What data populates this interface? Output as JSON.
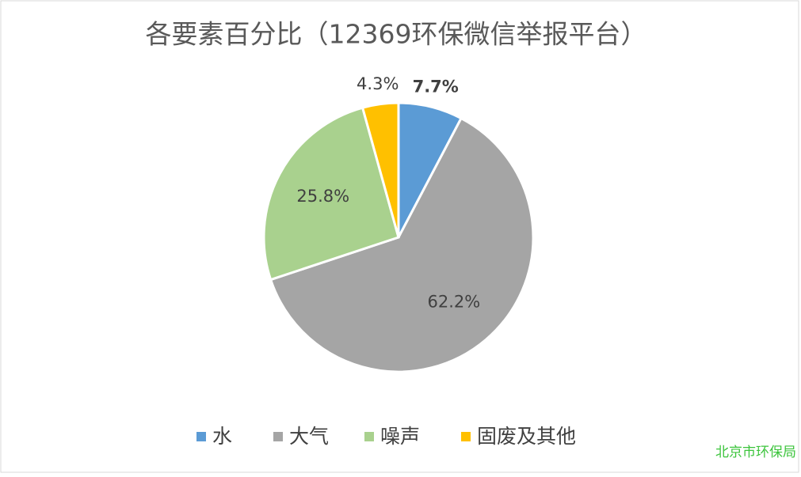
{
  "chart_data": {
    "type": "pie",
    "title": "各要素百分比（12369环保微信举报平台）",
    "categories": [
      "水",
      "大气",
      "噪声",
      "固废及其他"
    ],
    "values": [
      7.7,
      62.2,
      25.8,
      4.3
    ],
    "value_labels": [
      "7.7%",
      "62.2%",
      "25.8%",
      "4.3%"
    ],
    "colors": [
      "#5b9bd5",
      "#a5a5a5",
      "#a9d18e",
      "#ffc000"
    ],
    "legend": "bottom",
    "watermark": "北京市环保局"
  }
}
